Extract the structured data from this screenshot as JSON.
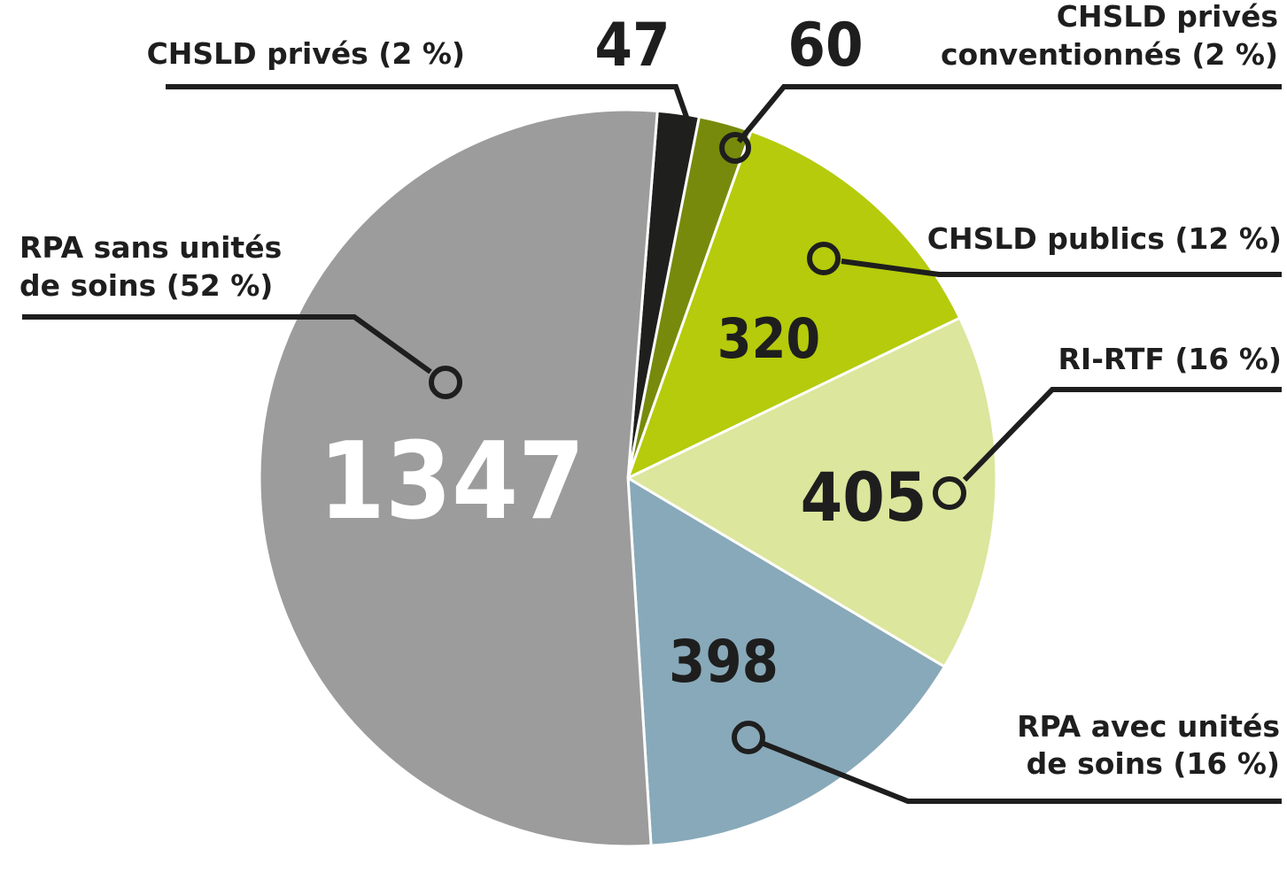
{
  "chart_data": {
    "type": "pie",
    "slices": [
      {
        "name": "CHSLD privés (2 %)",
        "value": 47,
        "color": "#1f201e"
      },
      {
        "name": "CHSLD privés conventionnés (2 %)",
        "value": 60,
        "color": "#788a0b"
      },
      {
        "name": "CHSLD publics (12 %)",
        "value": 320,
        "color": "#b5cb0b"
      },
      {
        "name": "RI-RTF (16 %)",
        "value": 405,
        "color": "#dce69c"
      },
      {
        "name": "RPA avec unités de soins (16 %)",
        "value": 398,
        "color": "#88a9b9"
      },
      {
        "name": "RPA sans unités de soins (52 %)",
        "value": 1347,
        "color": "#9c9c9c"
      }
    ],
    "labels": {
      "chsld_prives": "CHSLD privés (2 %)",
      "chsld_conv_1": "CHSLD privés",
      "chsld_conv_2": "conventionnés (2 %)",
      "chsld_publics": "CHSLD publics (12 %)",
      "ri_rtf": "RI-RTF (16 %)",
      "rpa_avec_1": "RPA avec unités",
      "rpa_avec_2": "de soins (16 %)",
      "rpa_sans_1": "RPA sans unités",
      "rpa_sans_2": "de soins (52 %)"
    },
    "value_labels": {
      "chsld_prives": "47",
      "chsld_conv": "60",
      "chsld_publics": "320",
      "ri_rtf": "405",
      "rpa_avec": "398",
      "rpa_sans": "1347"
    }
  }
}
